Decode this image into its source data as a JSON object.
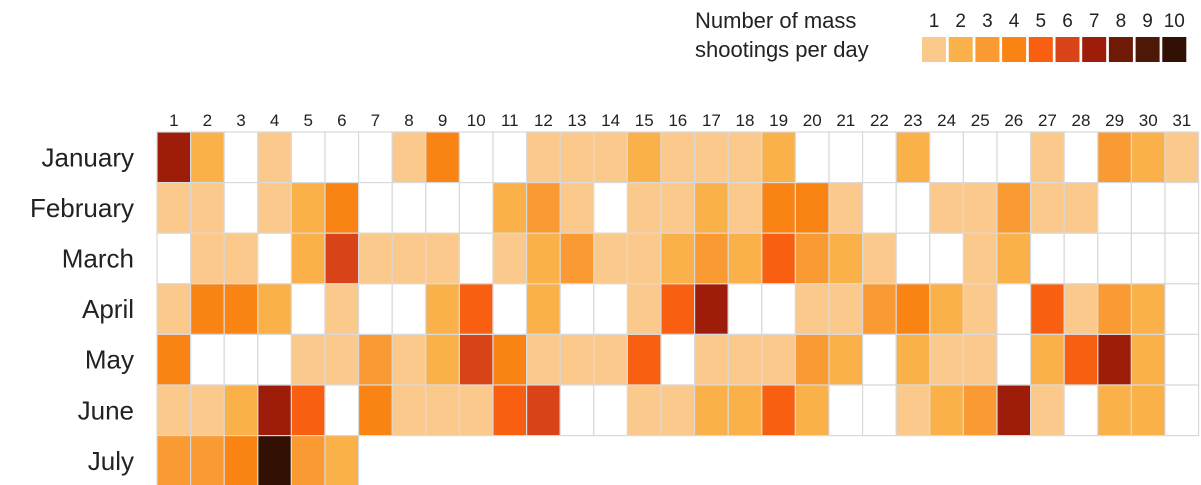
{
  "chart_data": {
    "type": "heatmap",
    "legend": {
      "title_lines": [
        "Number of mass",
        "shootings per day"
      ],
      "levels": [
        1,
        2,
        3,
        4,
        5,
        6,
        7,
        8,
        9,
        10
      ],
      "colors": [
        "#fcc98c",
        "#fbb14a",
        "#f99a33",
        "#f98313",
        "#f85f10",
        "#d84418",
        "#9e1d0a",
        "#6f1a06",
        "#4d1805",
        "#321004"
      ]
    },
    "days": [
      "1",
      "2",
      "3",
      "4",
      "5",
      "6",
      "7",
      "8",
      "9",
      "10",
      "11",
      "12",
      "13",
      "14",
      "15",
      "16",
      "17",
      "18",
      "19",
      "20",
      "21",
      "22",
      "23",
      "24",
      "25",
      "26",
      "27",
      "28",
      "29",
      "30",
      "31"
    ],
    "months": [
      "January",
      "February",
      "March",
      "April",
      "May",
      "June",
      "July"
    ],
    "values": [
      [
        7,
        2,
        0,
        1,
        0,
        0,
        0,
        1,
        4,
        0,
        0,
        1,
        1,
        1,
        2,
        1,
        1,
        1,
        2,
        0,
        0,
        0,
        2,
        0,
        0,
        0,
        1,
        0,
        3,
        2,
        1
      ],
      [
        1,
        1,
        0,
        1,
        2,
        4,
        0,
        0,
        0,
        0,
        2,
        3,
        1,
        0,
        1,
        1,
        2,
        1,
        4,
        4,
        1,
        0,
        0,
        1,
        1,
        3,
        1,
        1,
        0,
        0,
        0
      ],
      [
        0,
        1,
        1,
        0,
        2,
        6,
        1,
        1,
        1,
        0,
        1,
        2,
        3,
        1,
        1,
        2,
        3,
        2,
        5,
        3,
        2,
        1,
        0,
        0,
        1,
        2,
        0,
        0,
        0,
        0,
        0
      ],
      [
        1,
        4,
        4,
        2,
        0,
        1,
        0,
        0,
        2,
        5,
        0,
        2,
        0,
        0,
        1,
        5,
        7,
        0,
        0,
        1,
        1,
        3,
        4,
        2,
        1,
        0,
        5,
        1,
        3,
        2,
        0
      ],
      [
        4,
        0,
        0,
        0,
        1,
        1,
        3,
        1,
        2,
        6,
        4,
        1,
        1,
        1,
        5,
        0,
        1,
        1,
        1,
        3,
        2,
        0,
        2,
        1,
        1,
        0,
        2,
        5,
        7,
        2,
        0
      ],
      [
        1,
        1,
        2,
        7,
        5,
        0,
        4,
        1,
        1,
        1,
        5,
        6,
        0,
        0,
        1,
        1,
        2,
        2,
        5,
        2,
        0,
        0,
        1,
        2,
        3,
        7,
        1,
        0,
        2,
        2,
        0
      ],
      [
        3,
        3,
        4,
        10,
        3,
        2
      ]
    ]
  }
}
